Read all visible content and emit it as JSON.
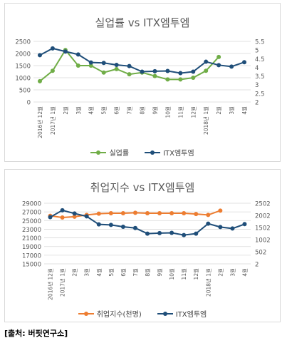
{
  "source": "[출처: 버핏연구소]",
  "chart_data": [
    {
      "type": "line",
      "title": "실업률 vs ITX엠투엠",
      "categories": [
        "2016년 12월",
        "2017년 1월",
        "2월",
        "3월",
        "4월",
        "5월",
        "6월",
        "7월",
        "8월",
        "9월",
        "10월",
        "11월",
        "12월",
        "2018년 1월",
        "2월",
        "3월",
        "4월"
      ],
      "y_left": {
        "ylim": [
          0,
          2500
        ],
        "ticks": [
          "0",
          "500",
          "1000",
          "1500",
          "2000",
          "2500"
        ]
      },
      "y_right": {
        "ylim": [
          2,
          5.5
        ],
        "ticks": [
          "2",
          "2.5",
          "3",
          "3.5",
          "4",
          "4.5",
          "5",
          "5.5"
        ]
      },
      "grid": true,
      "legend_position": "bottom",
      "series": [
        {
          "name": "실업률",
          "axis": "right",
          "color": "#70ad47",
          "values": [
            3.2,
            3.8,
            5.0,
            4.1,
            4.1,
            3.7,
            3.9,
            3.6,
            3.7,
            3.5,
            3.3,
            3.3,
            3.4,
            3.8,
            4.6,
            null,
            null
          ]
        },
        {
          "name": "ITX엠투엠",
          "axis": "left",
          "color": "#1f4e79",
          "values": [
            1930,
            2210,
            2080,
            1960,
            1630,
            1610,
            1530,
            1480,
            1250,
            1270,
            1280,
            1190,
            1250,
            1660,
            1520,
            1460,
            1640
          ]
        }
      ]
    },
    {
      "type": "line",
      "title": "취업지수 vs ITX엠투엠",
      "categories": [
        "2016년 12월",
        "2017년 1월",
        "2월",
        "3월",
        "4월",
        "5월",
        "6월",
        "7월",
        "8월",
        "9월",
        "10월",
        "11월",
        "12월",
        "2018년 1월",
        "2월",
        "3월",
        "4월"
      ],
      "y_left": {
        "ylim": [
          15000,
          29000
        ],
        "ticks": [
          "15000",
          "17000",
          "19000",
          "21000",
          "23000",
          "25000",
          "27000",
          "29000"
        ]
      },
      "y_right": {
        "ylim": [
          2,
          2502
        ],
        "ticks": [
          "2",
          "502",
          "1002",
          "1502",
          "2002",
          "2502"
        ]
      },
      "grid": true,
      "legend_position": "bottom",
      "series": [
        {
          "name": "취업지수(천명)",
          "axis": "left",
          "color": "#ed7d31",
          "values": [
            26100,
            25700,
            25900,
            26300,
            26600,
            26700,
            26700,
            26800,
            26700,
            26700,
            26700,
            26700,
            26500,
            26300,
            27300,
            null,
            null
          ]
        },
        {
          "name": "ITX엠투엠",
          "axis": "right",
          "color": "#1f4e79",
          "values": [
            1930,
            2210,
            2080,
            1960,
            1630,
            1610,
            1530,
            1480,
            1250,
            1270,
            1280,
            1190,
            1250,
            1660,
            1520,
            1460,
            1640
          ]
        }
      ]
    }
  ]
}
